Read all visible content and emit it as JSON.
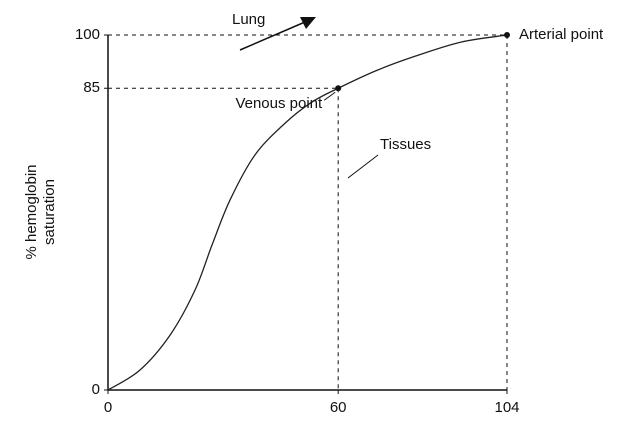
{
  "chart_data": {
    "type": "line",
    "y_label": [
      "% hemoglobin",
      "saturation"
    ],
    "xlim": [
      0,
      104
    ],
    "ylim": [
      0,
      100
    ],
    "xticks": [
      0,
      60,
      104
    ],
    "yticks": [
      0,
      85,
      100
    ],
    "series": [
      {
        "x": [
          0,
          8.3,
          16.2,
          22.7,
          27.1,
          31.8,
          38.3,
          46,
          53,
          60,
          70,
          80,
          92,
          104
        ],
        "values": [
          0,
          5.6,
          15.5,
          28.2,
          40.8,
          53.5,
          66.2,
          75,
          81,
          85,
          90,
          94,
          98,
          100
        ],
        "color": "#222"
      }
    ],
    "points": [
      {
        "label": "Venous point",
        "x": 60,
        "y": 85
      },
      {
        "label": "Arterial point",
        "x": 104,
        "y": 100
      }
    ],
    "annotations": [
      "Lung",
      "Tissues"
    ]
  }
}
